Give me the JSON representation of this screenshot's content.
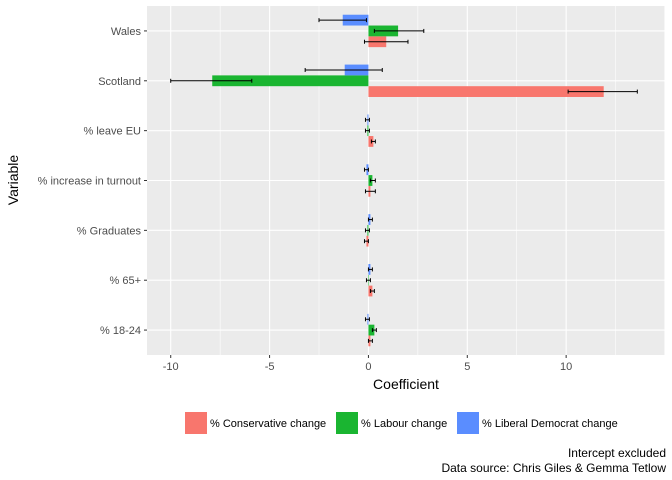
{
  "chart_data": {
    "type": "bar",
    "orientation": "horizontal",
    "grouped": true,
    "title": "",
    "xlabel": "Coefficient",
    "ylabel": "Variable",
    "xlim": [
      -11.2,
      15.0
    ],
    "x_ticks": [
      -10,
      -5,
      0,
      5,
      10
    ],
    "grid": true,
    "legend_position": "bottom",
    "categories": [
      "Wales",
      "Scotland",
      "% leave EU",
      "% increase in turnout",
      "% Graduates",
      "% 65+",
      "% 18-24"
    ],
    "series": [
      {
        "name": "% Conservative change",
        "color": "#F8766D",
        "values": [
          0.9,
          11.9,
          0.25,
          0.1,
          -0.1,
          0.2,
          0.1
        ],
        "ci_low": [
          -0.2,
          10.1,
          0.15,
          -0.15,
          -0.2,
          0.1,
          0.0
        ],
        "ci_high": [
          2.0,
          13.6,
          0.35,
          0.35,
          0.0,
          0.3,
          0.2
        ]
      },
      {
        "name": "% Labour change",
        "color": "#1AB531",
        "values": [
          1.5,
          -7.9,
          -0.05,
          0.2,
          -0.05,
          0.0,
          0.3
        ],
        "ci_low": [
          0.3,
          -10.0,
          -0.15,
          0.1,
          -0.15,
          -0.1,
          0.2
        ],
        "ci_high": [
          2.8,
          -5.9,
          0.05,
          0.35,
          0.05,
          0.1,
          0.4
        ]
      },
      {
        "name": "% Liberal Democrat change",
        "color": "#5A8DFF",
        "values": [
          -1.3,
          -1.2,
          -0.05,
          -0.1,
          0.1,
          0.1,
          -0.05
        ],
        "ci_low": [
          -2.5,
          -3.2,
          -0.15,
          -0.2,
          0.0,
          0.0,
          -0.15
        ],
        "ci_high": [
          -0.1,
          0.7,
          0.05,
          0.0,
          0.2,
          0.2,
          0.05
        ]
      }
    ],
    "caption_lines": [
      "Intercept excluded",
      "Data source: Chris Giles & Gemma Tetlow"
    ]
  }
}
